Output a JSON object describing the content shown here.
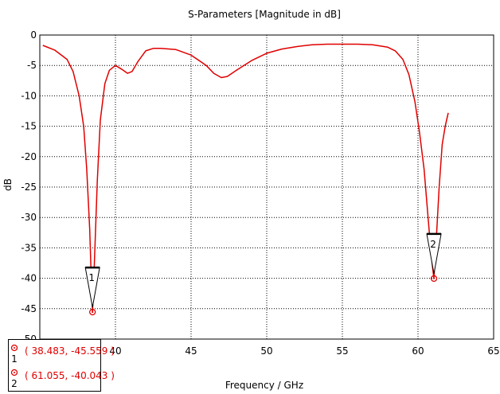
{
  "chart_data": {
    "type": "line",
    "title": "S-Parameters [Magnitude in dB]",
    "xlabel": "Frequency / GHz",
    "ylabel": "dB",
    "xlim": [
      35,
      65
    ],
    "ylim": [
      -50,
      0
    ],
    "xticks": [
      40,
      45,
      50,
      55,
      60,
      65
    ],
    "xtick_labels": [
      "40",
      "45",
      "50",
      "55",
      "60",
      "65"
    ],
    "yticks": [
      0,
      -5,
      -10,
      -15,
      -20,
      -25,
      -30,
      -35,
      -40,
      -45,
      -50
    ],
    "ytick_labels": [
      "0",
      "-5",
      "-10",
      "-15",
      "-20",
      "-25",
      "-30",
      "-35",
      "-40",
      "-45",
      "-50"
    ],
    "grid": true,
    "line_color": "#e00000",
    "series": [
      {
        "x": [
          35.2,
          36.0,
          36.8,
          37.2,
          37.6,
          37.9,
          38.1,
          38.3,
          38.4,
          38.483,
          38.6,
          38.8,
          39.0,
          39.3,
          39.6,
          40.0,
          40.4,
          40.8,
          41.1,
          41.5,
          42.0,
          42.5,
          43.0,
          44.0,
          45.0,
          46.0,
          46.5,
          47.0,
          47.4,
          48.0,
          49.0,
          50.0,
          51.0,
          52.0,
          53.0,
          54.0,
          55.0,
          56.0,
          57.0,
          58.0,
          58.5,
          59.0,
          59.4,
          59.8,
          60.1,
          60.4,
          60.6,
          60.8,
          60.95,
          61.055,
          61.2,
          61.4,
          61.6,
          61.8,
          62.0
        ],
        "y": [
          -1.7,
          -2.5,
          -4.0,
          -6.0,
          -10.0,
          -15.0,
          -22.0,
          -32.0,
          -40.0,
          -45.559,
          -38.0,
          -24.0,
          -14.0,
          -8.0,
          -5.8,
          -5.0,
          -5.6,
          -6.3,
          -6.0,
          -4.3,
          -2.6,
          -2.2,
          -2.2,
          -2.4,
          -3.3,
          -5.0,
          -6.3,
          -7.0,
          -6.8,
          -5.8,
          -4.2,
          -3.0,
          -2.3,
          -1.9,
          -1.6,
          -1.5,
          -1.5,
          -1.5,
          -1.6,
          -2.0,
          -2.6,
          -4.0,
          -6.5,
          -11.0,
          -16.0,
          -22.0,
          -28.0,
          -34.0,
          -38.0,
          -40.043,
          -34.0,
          -25.0,
          -18.0,
          -15.0,
          -12.8
        ]
      }
    ],
    "markers": [
      {
        "label": "1",
        "x": 38.483,
        "y": -45.559
      },
      {
        "label": "2",
        "x": 61.055,
        "y": -40.043
      }
    ]
  },
  "legend": [
    {
      "number": "1",
      "text": "( 38.483, -45.559 )"
    },
    {
      "number": "2",
      "text": "( 61.055, -40.043 )"
    }
  ]
}
